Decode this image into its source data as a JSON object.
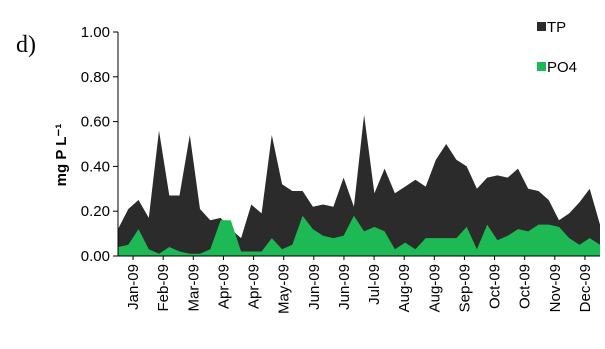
{
  "panel_label": "d)",
  "chart_data": {
    "type": "area",
    "ylabel": "mg P L⁻¹",
    "ylim": [
      0,
      1.0
    ],
    "ytick_labels": [
      "0.00",
      "0.20",
      "0.40",
      "0.60",
      "0.80",
      "1.00"
    ],
    "ytick_values": [
      0,
      0.2,
      0.4,
      0.6,
      0.8,
      1.0
    ],
    "xtick_labels": [
      "Jan-09",
      "Feb-09",
      "Mar-09",
      "Apr-09",
      "Apr-09",
      "May-09",
      "Jun-09",
      "Jun-09",
      "Jul-09",
      "Aug-09",
      "Aug-09",
      "Sep-09",
      "Oct-09",
      "Oct-09",
      "Nov-09",
      "Dec-09"
    ],
    "legend_placement": "right",
    "series": [
      {
        "name": "TP",
        "color": "#2b2b2b",
        "values": [
          0.12,
          0.21,
          0.25,
          0.17,
          0.56,
          0.27,
          0.27,
          0.54,
          0.21,
          0.16,
          0.17,
          0.12,
          0.08,
          0.23,
          0.19,
          0.54,
          0.32,
          0.29,
          0.29,
          0.22,
          0.23,
          0.22,
          0.35,
          0.22,
          0.63,
          0.28,
          0.39,
          0.28,
          0.31,
          0.34,
          0.31,
          0.43,
          0.5,
          0.43,
          0.4,
          0.3,
          0.35,
          0.36,
          0.35,
          0.39,
          0.3,
          0.29,
          0.25,
          0.16,
          0.19,
          0.24,
          0.3,
          0.14
        ]
      },
      {
        "name": "PO4",
        "color": "#1db954",
        "values": [
          0.04,
          0.05,
          0.12,
          0.03,
          0.01,
          0.04,
          0.02,
          0.01,
          0.01,
          0.03,
          0.16,
          0.16,
          0.02,
          0.02,
          0.02,
          0.08,
          0.03,
          0.05,
          0.18,
          0.12,
          0.09,
          0.08,
          0.09,
          0.18,
          0.11,
          0.13,
          0.11,
          0.03,
          0.06,
          0.03,
          0.08,
          0.08,
          0.08,
          0.08,
          0.13,
          0.03,
          0.14,
          0.07,
          0.09,
          0.12,
          0.11,
          0.14,
          0.14,
          0.13,
          0.08,
          0.05,
          0.08,
          0.05
        ]
      }
    ]
  }
}
